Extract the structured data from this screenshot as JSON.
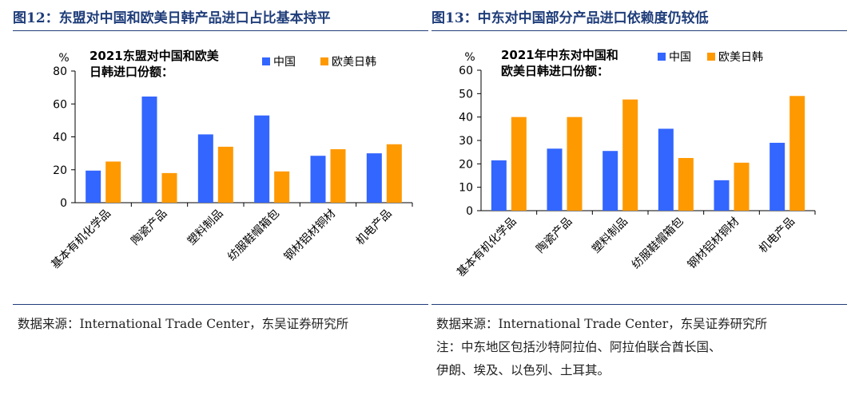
{
  "panels": [
    {
      "fig_title": "图12：东盟对中国和欧美日韩产品进口占比基本持平",
      "source": "数据来源：International Trade Center，东吴证券研究所",
      "note": "",
      "chart_data": {
        "type": "bar",
        "title_lines": [
          "2021东盟对中国和欧美",
          "日韩进口份额："
        ],
        "unit": "%",
        "categories": [
          "基本有机化学品",
          "陶瓷产品",
          "塑料制品",
          "纺服鞋帽箱包",
          "钢材铝材铜材",
          "机电产品"
        ],
        "series": [
          {
            "name": "中国",
            "color": "#3366ff",
            "values": [
              19.5,
              64.5,
              41.5,
              53,
              28.5,
              30
            ]
          },
          {
            "name": "欧美日韩",
            "color": "#ff9900",
            "values": [
              25,
              18,
              34,
              19,
              32.5,
              35.5
            ]
          }
        ],
        "ylim": [
          0,
          80
        ],
        "yticks": [
          0,
          20,
          40,
          60,
          80
        ],
        "legend_position": "top-right"
      }
    },
    {
      "fig_title": "图13：中东对中国部分产品进口依赖度仍较低",
      "source": "数据来源：International Trade Center，东吴证券研究所",
      "note": "注：中东地区包括沙特阿拉伯、阿拉伯联合酋长国、",
      "note2": "伊朗、埃及、以色列、土耳其。",
      "chart_data": {
        "type": "bar",
        "title_lines": [
          "2021年中东对中国和",
          "欧美日韩进口份额："
        ],
        "unit": "%",
        "categories": [
          "基本有机化学品",
          "陶瓷产品",
          "塑料制品",
          "纺服鞋帽箱包",
          "钢材铝材铜材",
          "机电产品"
        ],
        "series": [
          {
            "name": "中国",
            "color": "#3366ff",
            "values": [
              21.5,
              26.5,
              25.5,
              35,
              13,
              29
            ]
          },
          {
            "name": "欧美日韩",
            "color": "#ff9900",
            "values": [
              40,
              40,
              47.5,
              22.5,
              20.5,
              49
            ]
          }
        ],
        "ylim": [
          0,
          60
        ],
        "yticks": [
          0,
          10,
          20,
          30,
          40,
          50,
          60
        ],
        "legend_position": "top-right"
      }
    }
  ]
}
